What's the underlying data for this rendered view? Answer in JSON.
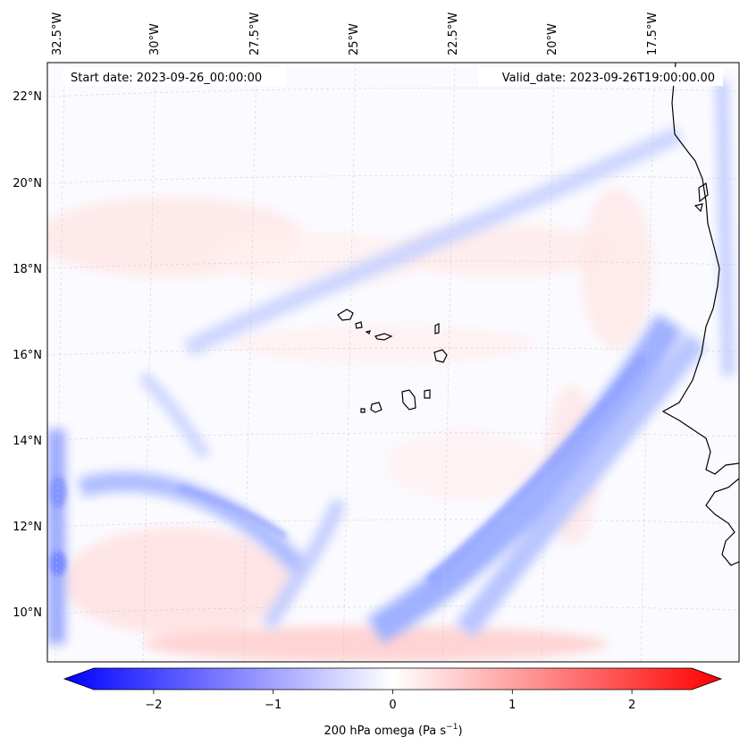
{
  "map": {
    "variable_label": "200 hPa omega (Pa s",
    "variable_units_exp": "−1",
    "variable_label_close": ")",
    "start_date_label": "Start date: 2023-09-26_00:00:00",
    "valid_date_label": "Valid_date: 2023-09-26T19:00:00.00",
    "region": "Cape Verde / West Africa",
    "lon_ticks": [
      "32.5°W",
      "30°W",
      "27.5°W",
      "25°W",
      "22.5°W",
      "20°W",
      "17.5°W"
    ],
    "lat_ticks": [
      "22°N",
      "20°N",
      "18°N",
      "16°N",
      "14°N",
      "12°N",
      "10°N"
    ]
  },
  "colorbar": {
    "ticks": [
      {
        "value": -2,
        "label": "−2"
      },
      {
        "value": -1,
        "label": "−1"
      },
      {
        "value": 0,
        "label": "0"
      },
      {
        "value": 1,
        "label": "1"
      },
      {
        "value": 2,
        "label": "2"
      }
    ],
    "range": [
      -2.5,
      2.5
    ],
    "colormap": "bwr",
    "low_color": "#0000ff",
    "mid_color": "#ffffff",
    "high_color": "#ff0000"
  },
  "chart_data": {
    "type": "heatmap",
    "title": "",
    "variable": "200 hPa omega",
    "units": "Pa s^-1",
    "start_date": "2023-09-26_00:00:00",
    "valid_date": "2023-09-26T19:00:00.00",
    "lon_range": [
      -33,
      -16
    ],
    "lat_range": [
      9,
      22.7
    ],
    "vmin": -2.5,
    "vmax": 2.5,
    "features": [
      {
        "name": "northern ascent band",
        "sign": "negative",
        "peak": -0.4
      },
      {
        "name": "southeast ascent band",
        "sign": "negative",
        "peak": -1.2
      },
      {
        "name": "southwest ascent band",
        "sign": "negative",
        "peak": -0.9
      },
      {
        "name": "western edge ascent",
        "sign": "negative",
        "peak": -1.0
      },
      {
        "name": "coastal ascent strip",
        "sign": "negative",
        "peak": -0.6
      },
      {
        "name": "southern subsidence",
        "sign": "positive",
        "peak": 0.6
      },
      {
        "name": "northwest subsidence",
        "sign": "positive",
        "peak": 0.2
      }
    ]
  }
}
